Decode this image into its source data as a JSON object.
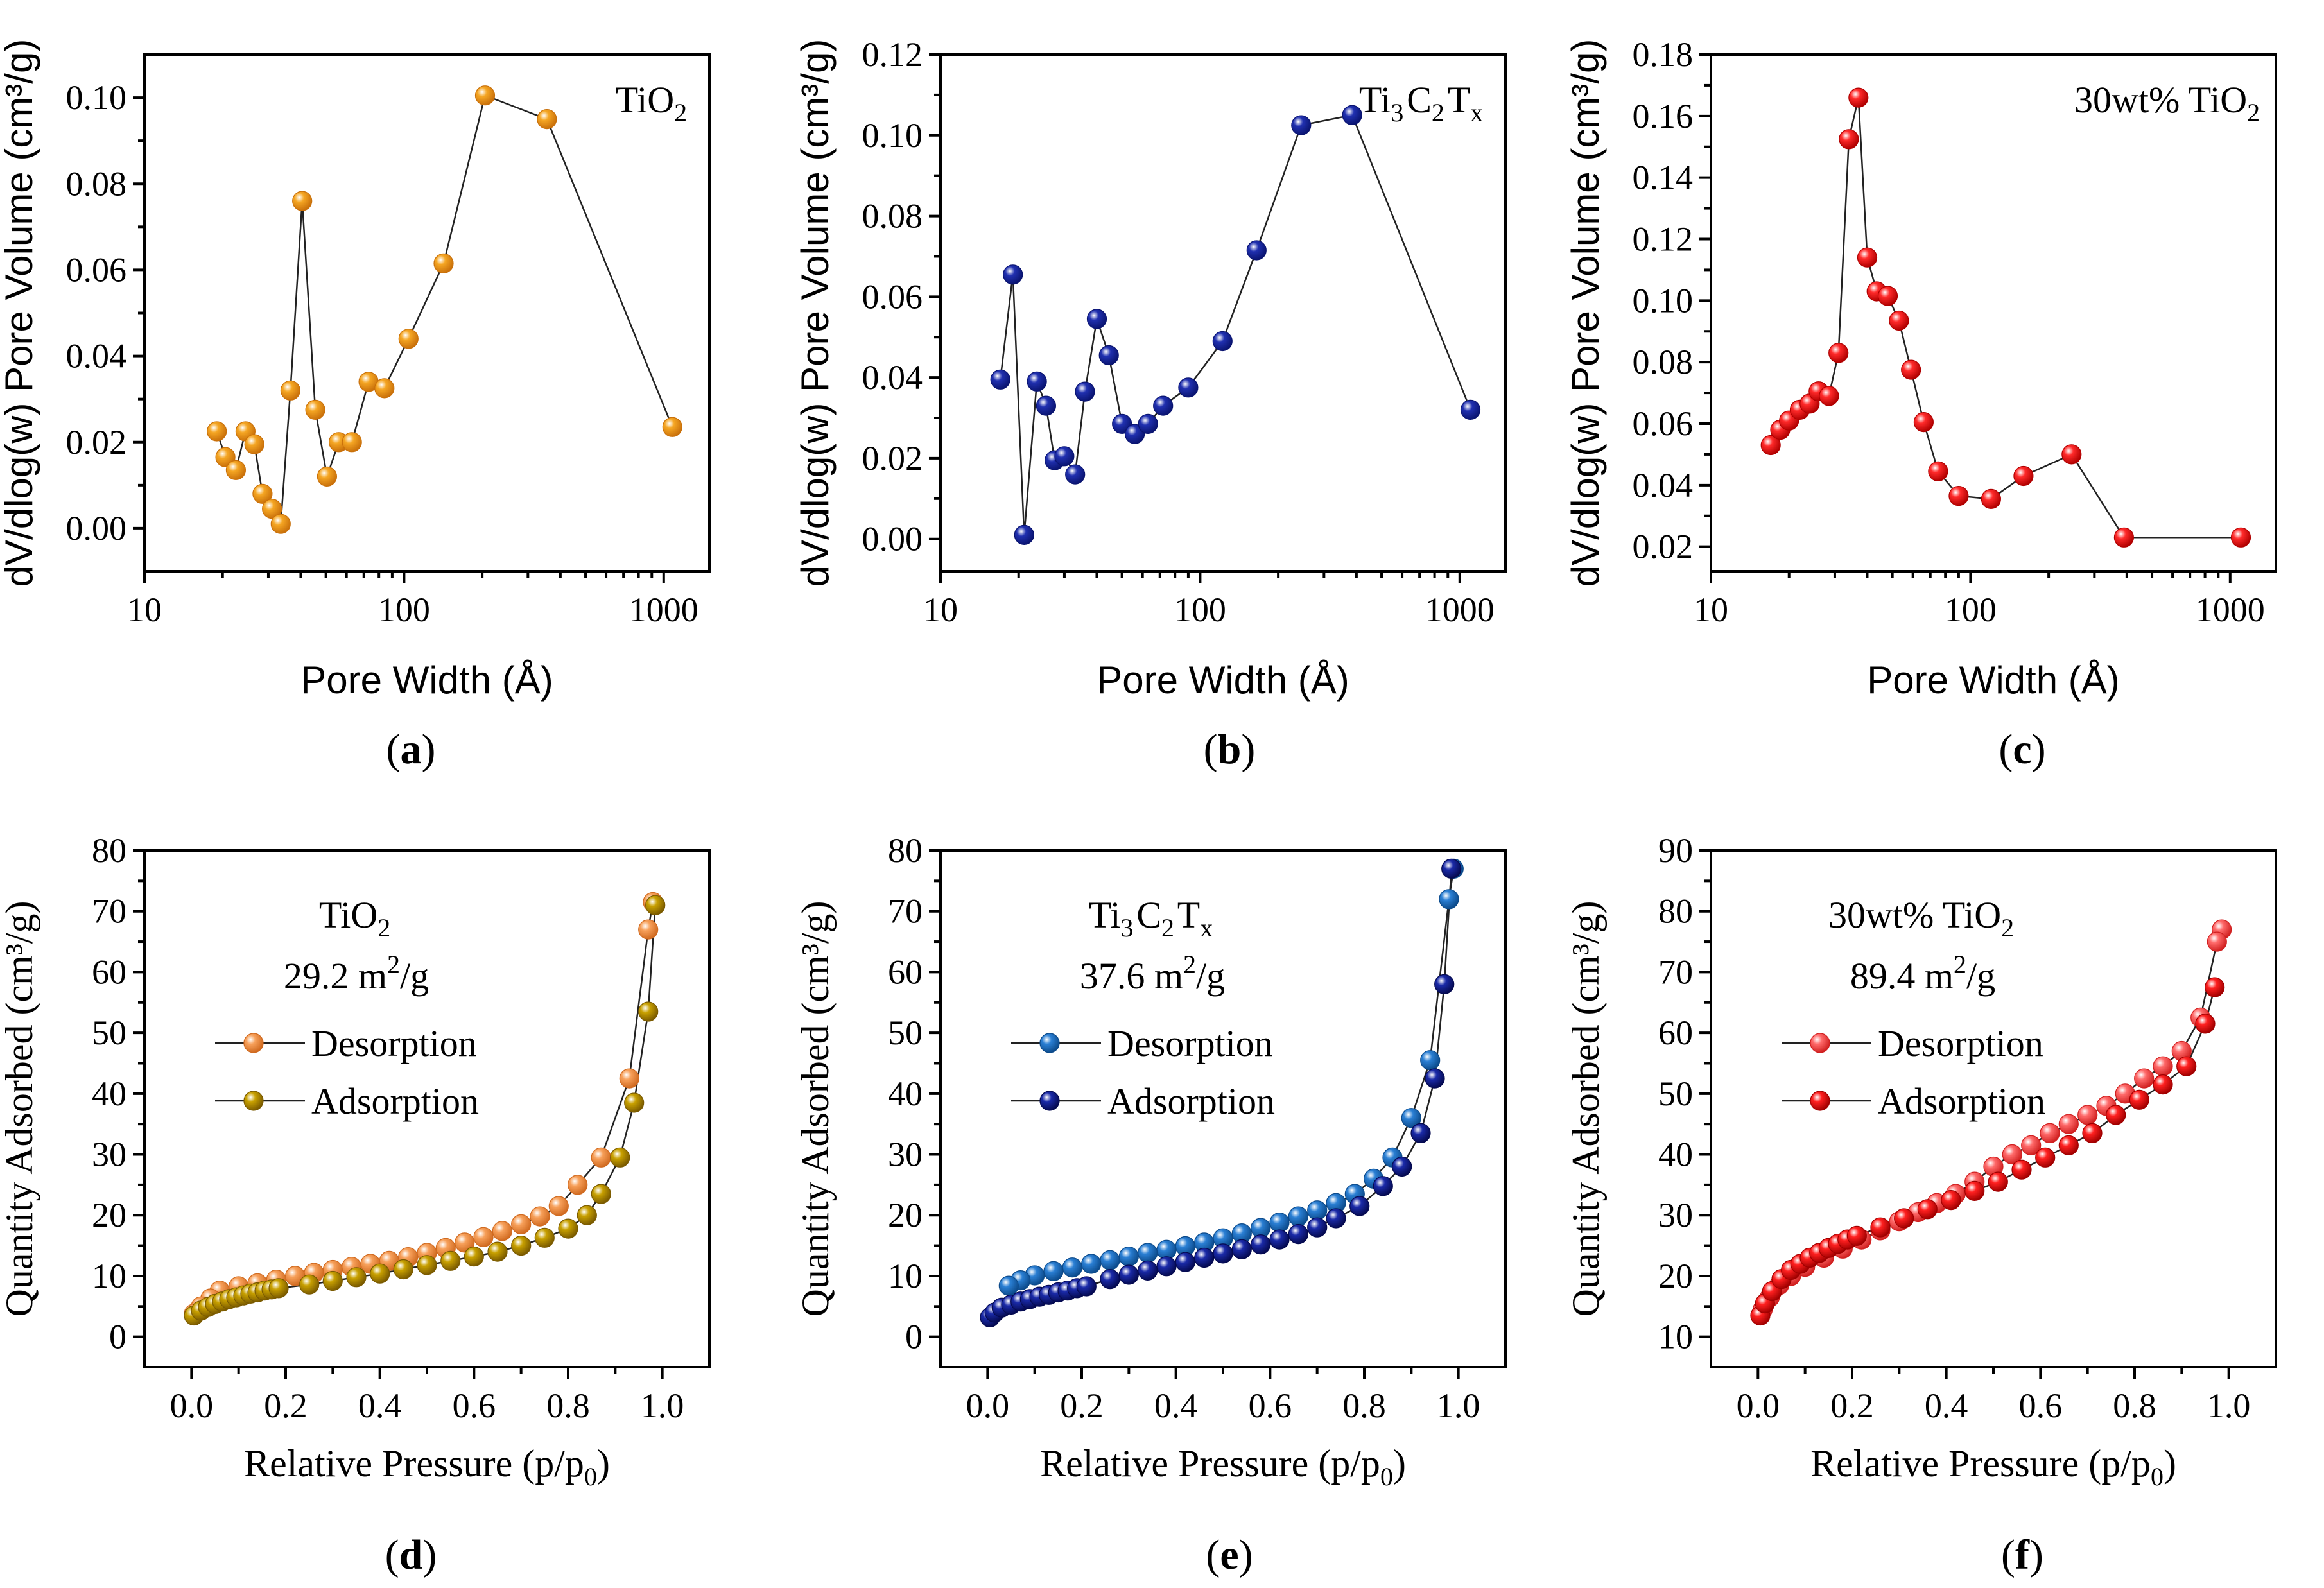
{
  "chart_data": [
    {
      "id": "a",
      "type": "scatter-line",
      "panel_label": "a",
      "xscale": "log",
      "xlim": [
        10,
        1500
      ],
      "ylim": [
        -0.01,
        0.11
      ],
      "xticks": [
        10,
        100,
        1000
      ],
      "xtick_labels": [
        "10",
        "100",
        "1000"
      ],
      "yticks": [
        0.0,
        0.02,
        0.04,
        0.06,
        0.08,
        0.1
      ],
      "ytick_labels": [
        "0.00",
        "0.02",
        "0.04",
        "0.06",
        "0.08",
        "0.10"
      ],
      "xlabel": "Pore Width (Å)",
      "ylabel": "dV/dlog(w) Pore Volume (cm³/g)",
      "annotation": {
        "main": "TiO",
        "sub": "2",
        "tail": ""
      },
      "series": [
        {
          "name": "TiO2",
          "color": "#f5a623",
          "dark": "#c9700a",
          "x": [
            19,
            20.5,
            22.5,
            24.5,
            26.5,
            28.5,
            31,
            33.5,
            36.5,
            40.5,
            45.5,
            50.5,
            56,
            63,
            73,
            84,
            104,
            142,
            205,
            355,
            1080
          ],
          "y": [
            0.0225,
            0.0165,
            0.0135,
            0.0225,
            0.0195,
            0.008,
            0.0045,
            0.001,
            0.032,
            0.076,
            0.0275,
            0.012,
            0.02,
            0.02,
            0.034,
            0.0325,
            0.044,
            0.0615,
            0.1005,
            0.095,
            0.0235
          ]
        }
      ]
    },
    {
      "id": "b",
      "type": "scatter-line",
      "panel_label": "b",
      "xscale": "log",
      "xlim": [
        10,
        1500
      ],
      "ylim": [
        -0.008,
        0.12
      ],
      "xticks": [
        10,
        100,
        1000
      ],
      "xtick_labels": [
        "10",
        "100",
        "1000"
      ],
      "yticks": [
        0.0,
        0.02,
        0.04,
        0.06,
        0.08,
        0.1,
        0.12
      ],
      "ytick_labels": [
        "0.00",
        "0.02",
        "0.04",
        "0.06",
        "0.08",
        "0.10",
        "0.12"
      ],
      "xlabel": "Pore Width (Å)",
      "ylabel": "dV/dlog(w) Pore Volume (cm³/g)",
      "annotation": {
        "main": "Ti",
        "sub": "3",
        "main2": "C",
        "sub2": "2",
        "main3": "T",
        "sub3": "x"
      },
      "series": [
        {
          "name": "Ti3C2Tx",
          "color": "#2030b0",
          "dark": "#0a1470",
          "x": [
            17,
            19,
            21,
            23.5,
            25.5,
            27.5,
            30,
            33,
            36,
            40,
            44.5,
            50,
            56,
            63,
            72,
            90,
            122,
            165,
            245,
            385,
            1100
          ],
          "y": [
            0.0395,
            0.0655,
            0.001,
            0.039,
            0.033,
            0.0195,
            0.0205,
            0.016,
            0.0365,
            0.0545,
            0.0455,
            0.0285,
            0.026,
            0.0285,
            0.033,
            0.0375,
            0.049,
            0.0715,
            0.1025,
            0.105,
            0.032
          ]
        }
      ]
    },
    {
      "id": "c",
      "type": "scatter-line",
      "panel_label": "c",
      "xscale": "log",
      "xlim": [
        10,
        1500
      ],
      "ylim": [
        0.012,
        0.18
      ],
      "xticks": [
        10,
        100,
        1000
      ],
      "xtick_labels": [
        "10",
        "100",
        "1000"
      ],
      "yticks": [
        0.02,
        0.04,
        0.06,
        0.08,
        0.1,
        0.12,
        0.14,
        0.16,
        0.18
      ],
      "ytick_labels": [
        "0.02",
        "0.04",
        "0.06",
        "0.08",
        "0.10",
        "0.12",
        "0.14",
        "0.16",
        "0.18"
      ],
      "xlabel": "Pore Width (Å)",
      "ylabel": "dV/dlog(w) Pore Volume (cm³/g)",
      "annotation": {
        "main": "30wt% TiO",
        "sub": "2",
        "tail": ""
      },
      "series": [
        {
          "name": "30wt% TiO2",
          "color": "#ff2a2a",
          "dark": "#b00000",
          "x": [
            17,
            18.5,
            20,
            22,
            24,
            26,
            28.5,
            31,
            34,
            37,
            40,
            43.5,
            48,
            53,
            59,
            66,
            75,
            90,
            120,
            160,
            245,
            390,
            1100
          ],
          "y": [
            0.053,
            0.058,
            0.061,
            0.0645,
            0.0665,
            0.0705,
            0.069,
            0.083,
            0.1525,
            0.166,
            0.114,
            0.103,
            0.1015,
            0.0935,
            0.0775,
            0.0605,
            0.0445,
            0.0365,
            0.0355,
            0.043,
            0.05,
            0.023,
            0.023
          ]
        }
      ]
    },
    {
      "id": "d",
      "type": "scatter-line",
      "panel_label": "d",
      "xscale": "linear",
      "xlim": [
        -0.1,
        1.1
      ],
      "ylim": [
        -5,
        80
      ],
      "xticks": [
        0,
        0.2,
        0.4,
        0.6,
        0.8,
        1.0
      ],
      "xtick_labels": [
        "0.0",
        "0.2",
        "0.4",
        "0.6",
        "0.8",
        "1.0"
      ],
      "yticks": [
        0,
        10,
        20,
        30,
        40,
        50,
        60,
        70,
        80
      ],
      "ytick_labels": [
        "0",
        "10",
        "20",
        "30",
        "40",
        "50",
        "60",
        "70",
        "80"
      ],
      "xlabel": "Relative Pressure (p/p",
      "xlabel_sub": "0",
      "xlabel_tail": ")",
      "ylabel": "Quantity Adsorbed (cm³/g)",
      "annotation": {
        "main": "TiO",
        "sub": "2",
        "tail": ""
      },
      "surface_area": {
        "value": "29.2 m",
        "sup": "2",
        "tail": "/g"
      },
      "series": [
        {
          "name": "Desorption",
          "color": "#f7a05a",
          "dark": "#d06a20",
          "x": [
            0.98,
            0.97,
            0.93,
            0.87,
            0.82,
            0.78,
            0.74,
            0.7,
            0.66,
            0.62,
            0.58,
            0.54,
            0.5,
            0.46,
            0.42,
            0.38,
            0.34,
            0.3,
            0.26,
            0.22,
            0.18,
            0.14,
            0.1,
            0.06,
            0.04,
            0.02,
            0.005
          ],
          "y": [
            71.5,
            67.0,
            42.5,
            29.5,
            25.0,
            21.5,
            19.8,
            18.5,
            17.4,
            16.4,
            15.5,
            14.6,
            13.8,
            13.1,
            12.5,
            12.0,
            11.5,
            11.0,
            10.5,
            10.0,
            9.4,
            8.8,
            8.3,
            7.6,
            6.3,
            5.0,
            3.8
          ]
        },
        {
          "name": "Adsorption",
          "color": "#c8a000",
          "dark": "#7a5a00",
          "x": [
            0.005,
            0.02,
            0.035,
            0.05,
            0.065,
            0.08,
            0.095,
            0.11,
            0.125,
            0.14,
            0.155,
            0.17,
            0.185,
            0.25,
            0.3,
            0.35,
            0.4,
            0.45,
            0.5,
            0.55,
            0.6,
            0.65,
            0.7,
            0.75,
            0.8,
            0.84,
            0.87,
            0.91,
            0.94,
            0.97,
            0.985
          ],
          "y": [
            3.5,
            4.3,
            4.9,
            5.4,
            5.8,
            6.2,
            6.5,
            6.8,
            7.1,
            7.3,
            7.6,
            7.8,
            8.0,
            8.6,
            9.2,
            9.8,
            10.4,
            11.1,
            11.8,
            12.5,
            13.2,
            14.0,
            15.0,
            16.3,
            17.8,
            20.0,
            23.5,
            29.5,
            38.5,
            53.5,
            71.0
          ]
        }
      ]
    },
    {
      "id": "e",
      "type": "scatter-line",
      "panel_label": "e",
      "xscale": "linear",
      "xlim": [
        -0.1,
        1.1
      ],
      "ylim": [
        -5,
        80
      ],
      "xticks": [
        0,
        0.2,
        0.4,
        0.6,
        0.8,
        1.0
      ],
      "xtick_labels": [
        "0.0",
        "0.2",
        "0.4",
        "0.6",
        "0.8",
        "1.0"
      ],
      "yticks": [
        0,
        10,
        20,
        30,
        40,
        50,
        60,
        70,
        80
      ],
      "ytick_labels": [
        "0",
        "10",
        "20",
        "30",
        "40",
        "50",
        "60",
        "70",
        "80"
      ],
      "xlabel": "Relative Pressure (p/p",
      "xlabel_sub": "0",
      "xlabel_tail": ")",
      "ylabel": "Quantity Adsorbed (cm³/g)",
      "annotation": {
        "main": "Ti",
        "sub": "3",
        "main2": "C",
        "sub2": "2",
        "main3": "T",
        "sub3": "x"
      },
      "surface_area": {
        "value": "37.6 m",
        "sup": "2",
        "tail": "/g"
      },
      "series": [
        {
          "name": "Desorption",
          "color": "#2a7fd4",
          "dark": "#0c4a8a",
          "x": [
            0.99,
            0.98,
            0.94,
            0.9,
            0.86,
            0.82,
            0.78,
            0.74,
            0.7,
            0.66,
            0.62,
            0.58,
            0.54,
            0.5,
            0.46,
            0.42,
            0.38,
            0.34,
            0.3,
            0.26,
            0.22,
            0.18,
            0.14,
            0.1,
            0.07,
            0.045
          ],
          "y": [
            77.0,
            72.0,
            45.5,
            36.0,
            29.5,
            26.0,
            23.5,
            22.0,
            20.8,
            19.8,
            18.8,
            17.9,
            17.0,
            16.2,
            15.5,
            14.9,
            14.3,
            13.8,
            13.2,
            12.6,
            12.0,
            11.4,
            10.8,
            10.1,
            9.3,
            8.4
          ]
        },
        {
          "name": "Adsorption",
          "color": "#1a2aa8",
          "dark": "#050a50",
          "x": [
            0.005,
            0.015,
            0.03,
            0.05,
            0.07,
            0.09,
            0.11,
            0.13,
            0.15,
            0.17,
            0.19,
            0.21,
            0.26,
            0.3,
            0.34,
            0.38,
            0.42,
            0.46,
            0.5,
            0.54,
            0.58,
            0.62,
            0.66,
            0.7,
            0.74,
            0.79,
            0.84,
            0.88,
            0.92,
            0.95,
            0.97,
            0.985
          ],
          "y": [
            3.2,
            4.0,
            4.8,
            5.3,
            5.8,
            6.2,
            6.6,
            6.9,
            7.3,
            7.6,
            8.0,
            8.3,
            9.5,
            10.2,
            10.9,
            11.6,
            12.3,
            13.0,
            13.7,
            14.4,
            15.2,
            16.0,
            16.9,
            18.0,
            19.5,
            21.5,
            24.8,
            28.0,
            33.5,
            42.5,
            58.0,
            77.0
          ]
        }
      ]
    },
    {
      "id": "f",
      "type": "scatter-line",
      "panel_label": "f",
      "xscale": "linear",
      "xlim": [
        -0.1,
        1.1
      ],
      "ylim": [
        5,
        90
      ],
      "xticks": [
        0,
        0.2,
        0.4,
        0.6,
        0.8,
        1.0
      ],
      "xtick_labels": [
        "0.0",
        "0.2",
        "0.4",
        "0.6",
        "0.8",
        "1.0"
      ],
      "yticks": [
        10,
        20,
        30,
        40,
        50,
        60,
        70,
        80,
        90
      ],
      "ytick_labels": [
        "10",
        "20",
        "30",
        "40",
        "50",
        "60",
        "70",
        "80",
        "90"
      ],
      "xlabel": "Relative Pressure (p/p",
      "xlabel_sub": "0",
      "xlabel_tail": ")",
      "ylabel": "Quantity Adsorbed (cm³/g)",
      "annotation": {
        "main": "30wt% TiO",
        "sub": "2",
        "tail": ""
      },
      "surface_area": {
        "value": "89.4 m",
        "sup": "2",
        "tail": "/g"
      },
      "series": [
        {
          "name": "Desorption",
          "color": "#ff6a6a",
          "dark": "#d02020",
          "x": [
            0.985,
            0.975,
            0.94,
            0.9,
            0.86,
            0.82,
            0.78,
            0.74,
            0.7,
            0.66,
            0.62,
            0.58,
            0.54,
            0.5,
            0.46,
            0.42,
            0.38,
            0.34,
            0.3,
            0.26,
            0.22,
            0.18,
            0.14,
            0.1,
            0.07,
            0.045,
            0.025,
            0.01
          ],
          "y": [
            77.0,
            75.0,
            62.5,
            57.0,
            54.5,
            52.5,
            50.0,
            48.0,
            46.5,
            45.0,
            43.5,
            41.5,
            40.0,
            38.0,
            35.5,
            33.5,
            32.0,
            30.5,
            29.0,
            27.5,
            26.0,
            24.5,
            23.0,
            21.5,
            20.0,
            18.5,
            16.5,
            14.5
          ]
        },
        {
          "name": "Adsorption",
          "color": "#ff2020",
          "dark": "#a00000",
          "x": [
            0.005,
            0.015,
            0.03,
            0.05,
            0.07,
            0.09,
            0.11,
            0.13,
            0.15,
            0.17,
            0.19,
            0.21,
            0.26,
            0.31,
            0.36,
            0.41,
            0.46,
            0.51,
            0.56,
            0.61,
            0.66,
            0.71,
            0.76,
            0.81,
            0.86,
            0.91,
            0.95,
            0.97
          ],
          "y": [
            13.5,
            15.5,
            17.5,
            19.5,
            21.0,
            22.0,
            23.0,
            23.8,
            24.6,
            25.3,
            26.0,
            26.6,
            28.0,
            29.5,
            31.0,
            32.5,
            34.0,
            35.5,
            37.5,
            39.5,
            41.5,
            43.5,
            46.5,
            49.0,
            51.5,
            54.5,
            61.5,
            67.5
          ]
        }
      ]
    }
  ]
}
